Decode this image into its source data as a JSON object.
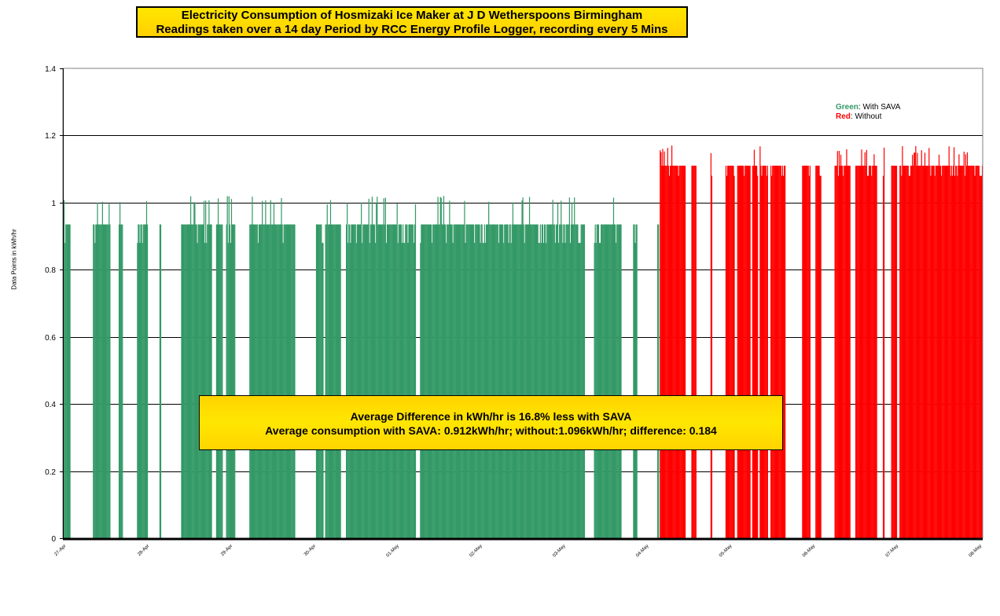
{
  "title": {
    "line1": "Electricity  Consumption of Hosmizaki Ice Maker at J D Wetherspoons Birmingham",
    "line2": "Readings taken over a 14 day Period by RCC Energy Profile Logger, recording every 5 Mins"
  },
  "legend": {
    "green_label": "Green",
    "green_text": ": With SAVA",
    "red_label": "Red",
    "red_text": ": Without"
  },
  "annotation": {
    "line1": "Average Difference in kWh/hr is 16.8% less with SAVA",
    "line2": "Average consumption with SAVA: 0.912kWh/hr; without:1.096kWh/hr; difference: 0.184"
  },
  "colors": {
    "with_sava": "#339966",
    "without": "#ff0000",
    "gridline": "#000000"
  },
  "chart_data": {
    "type": "bar",
    "title": "Electricity  Consumption of Hosmizaki Ice Maker at J D Wetherspoons Birmingham",
    "xlabel": "",
    "ylabel": "Data Points in kWh/hr",
    "ylim": [
      0,
      1.4
    ],
    "yticks": [
      0,
      0.2,
      0.4,
      0.6,
      0.8,
      1,
      1.2,
      1.4
    ],
    "ytick_labels": [
      "0",
      "0.2",
      "0.4",
      "0.6",
      "0.8",
      "1",
      "1.2",
      "1.4"
    ],
    "xlim": [
      0,
      11.05
    ],
    "xticks": [
      0,
      1,
      2,
      3,
      4,
      5,
      6,
      7,
      8,
      9,
      10,
      11
    ],
    "xtick_labels": [
      "27-Apr",
      "28-Apr",
      "29-Apr",
      "30-Apr",
      "01-May",
      "02-May",
      "03-May",
      "04-May",
      "05-May",
      "06-May",
      "07-May",
      "08-May"
    ],
    "grid": true,
    "legend_position": "top-right",
    "series": [
      {
        "name": "With SAVA",
        "color": "#339966",
        "typical": 0.935,
        "base": 0.88,
        "peak": 1.02,
        "segments": [
          [
            0.0,
            0.09
          ],
          [
            0.36,
            0.57
          ],
          [
            0.67,
            0.72
          ],
          [
            0.89,
            1.02
          ],
          [
            1.16,
            1.18
          ],
          [
            1.42,
            1.79
          ],
          [
            1.84,
            1.92
          ],
          [
            1.96,
            2.07
          ],
          [
            2.24,
            2.79
          ],
          [
            3.04,
            3.13
          ],
          [
            3.15,
            3.34
          ],
          [
            3.4,
            4.24
          ],
          [
            4.29,
            6.27
          ],
          [
            6.38,
            6.71
          ],
          [
            6.85,
            6.9
          ],
          [
            7.14,
            7.16
          ]
        ]
      },
      {
        "name": "Without",
        "color": "#ff0000",
        "typical": 1.11,
        "base": 1.08,
        "peak": 1.17,
        "segments": [
          [
            7.17,
            7.48
          ],
          [
            7.55,
            7.61
          ],
          [
            7.78,
            7.8
          ],
          [
            7.96,
            8.07
          ],
          [
            8.1,
            8.26
          ],
          [
            8.28,
            8.35
          ],
          [
            8.37,
            8.47
          ],
          [
            8.5,
            8.68
          ],
          [
            8.88,
            8.98
          ],
          [
            9.04,
            9.11
          ],
          [
            9.27,
            9.46
          ],
          [
            9.52,
            9.78
          ],
          [
            9.85,
            9.87
          ],
          [
            9.95,
            10.02
          ],
          [
            10.05,
            11.05
          ]
        ]
      }
    ]
  }
}
